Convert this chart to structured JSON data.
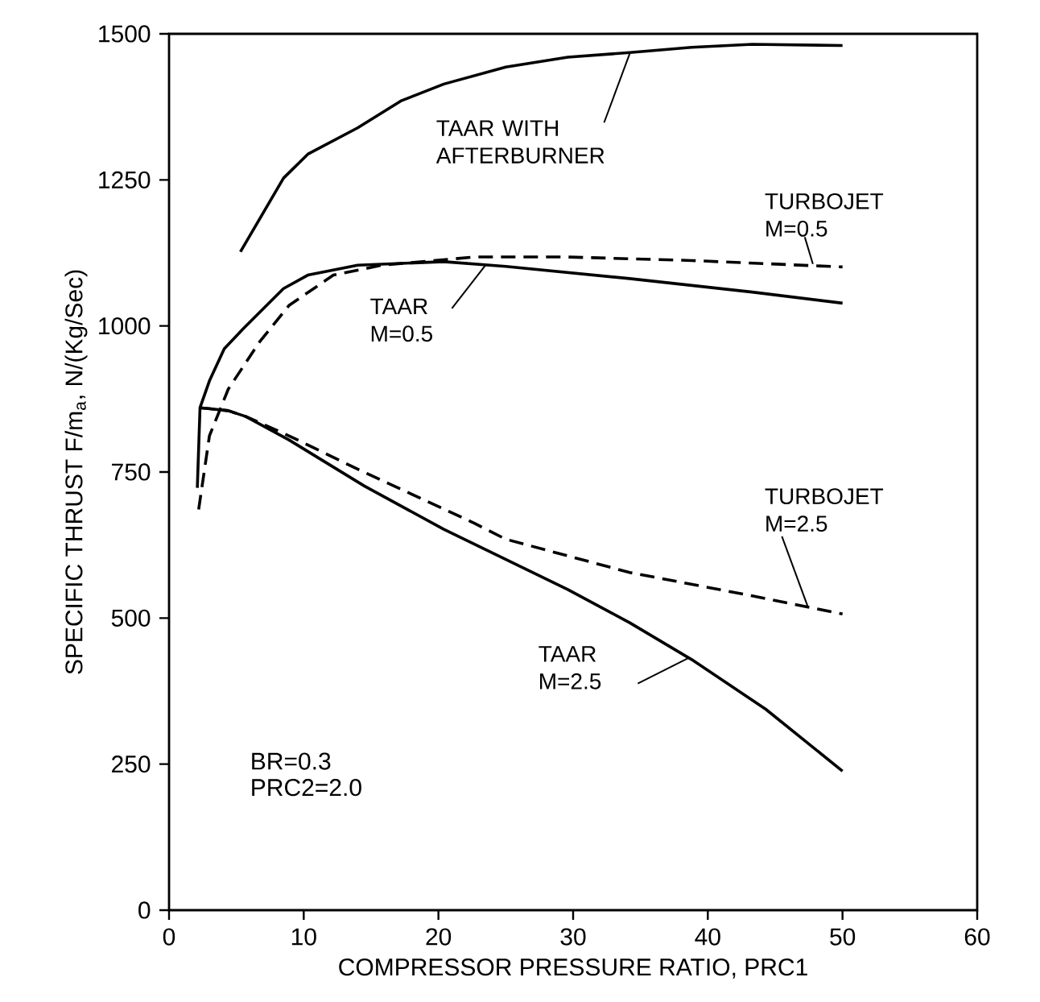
{
  "chart_data": {
    "type": "line",
    "xlabel": "COMPRESSOR PRESSURE RATIO, PRC1",
    "ylabel": "SPECIFIC THRUST F/m$_{a}$, N/(Kg/Sec)",
    "xlim": [
      0,
      60
    ],
    "ylim": [
      0,
      1500
    ],
    "xticks": [
      0,
      10,
      20,
      30,
      40,
      50,
      60
    ],
    "yticks": [
      0,
      250,
      500,
      750,
      1000,
      1250,
      1500
    ],
    "marker": "none",
    "series": [
      {
        "name": "TAAR WITH AFTERBURNER",
        "color": "#000000",
        "line_style": "solid",
        "x": [
          5.3,
          8.5,
          10.3,
          14.0,
          17.2,
          20.4,
          25,
          29.6,
          34.2,
          38.8,
          43.3,
          50
        ],
        "values": [
          1127,
          1253,
          1294,
          1339,
          1385,
          1414,
          1443,
          1460,
          1468,
          1477,
          1482,
          1480
        ]
      },
      {
        "name": "TURBOJET M=0.5",
        "color": "#000000",
        "line_style": "dashed",
        "x": [
          2.2,
          3.0,
          4.4,
          6.7,
          8.9,
          12.2,
          15.8,
          22.7,
          29.6,
          38.8,
          50
        ],
        "values": [
          686,
          812,
          892,
          972,
          1035,
          1087,
          1104,
          1118,
          1118,
          1112,
          1101
        ]
      },
      {
        "name": "TAAR M=0.5",
        "color": "#000000",
        "line_style": "solid",
        "x": [
          2.1,
          2.3,
          3.0,
          4.1,
          5.5,
          8.5,
          10.3,
          14.0,
          20.4,
          25,
          34.2,
          43.3,
          50
        ],
        "values": [
          723,
          860,
          906,
          961,
          995,
          1064,
          1087,
          1104,
          1110,
          1102,
          1081,
          1058,
          1039
        ]
      },
      {
        "name": "TURBOJET M=2.5",
        "color": "#000000",
        "line_style": "dashed",
        "x": [
          2.3,
          4.4,
          5.7,
          8.9,
          14.0,
          22.7,
          25,
          34.2,
          43.3,
          50
        ],
        "values": [
          860,
          855,
          845,
          812,
          755,
          662,
          635,
          578,
          538,
          507
        ]
      },
      {
        "name": "TAAR M=2.5",
        "color": "#000000",
        "line_style": "solid",
        "x": [
          2.3,
          4.4,
          5.7,
          8.9,
          14.5,
          20.4,
          29.6,
          34.2,
          38.8,
          44.3,
          50
        ],
        "values": [
          860,
          855,
          845,
          805,
          726,
          652,
          549,
          492,
          429,
          344,
          238
        ]
      }
    ],
    "annotations": [
      "BR=0.3",
      "PRC2=2.0"
    ]
  }
}
